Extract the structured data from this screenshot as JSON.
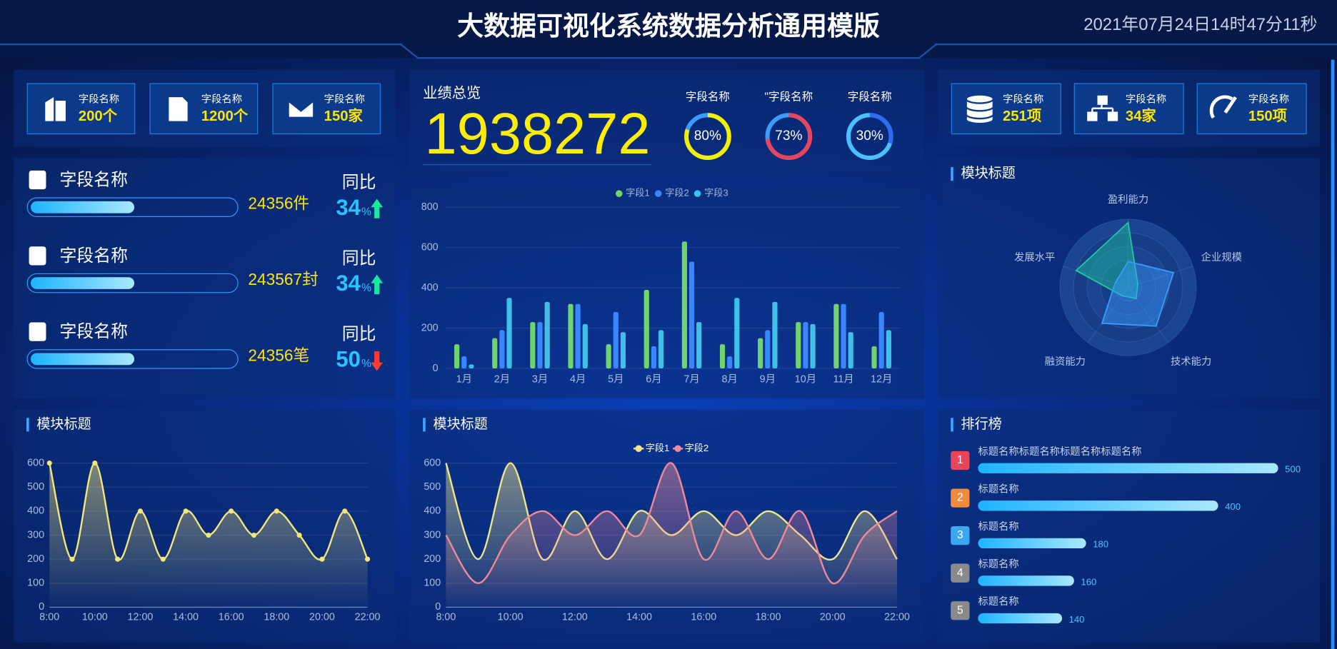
{
  "header": {
    "title": "大数据可视化系统数据分析通用模版",
    "datetime": "2021年07月24日14时47分11秒"
  },
  "stat_cards_left": [
    {
      "label": "字段名称",
      "value": "200个"
    },
    {
      "label": "字段名称",
      "value": "1200个"
    },
    {
      "label": "字段名称",
      "value": "150家"
    }
  ],
  "stat_cards_right": [
    {
      "label": "字段名称",
      "value": "251项"
    },
    {
      "label": "字段名称",
      "value": "34家"
    },
    {
      "label": "字段名称",
      "value": "150项"
    }
  ],
  "progress_items": [
    {
      "name": "字段名称",
      "amount": "24356件",
      "progress": 50,
      "yoy_label": "同比",
      "yoy": 34,
      "yoy_unit": "%",
      "trend": "up"
    },
    {
      "name": "字段名称",
      "amount": "243567封",
      "progress": 50,
      "yoy_label": "同比",
      "yoy": 34,
      "yoy_unit": "%",
      "trend": "up"
    },
    {
      "name": "字段名称",
      "amount": "24356笔",
      "progress": 50,
      "yoy_label": "同比",
      "yoy": 50,
      "yoy_unit": "%",
      "trend": "down"
    }
  ],
  "overview": {
    "title": "业绩总览",
    "total": 1938272
  },
  "chart_data": [
    {
      "type": "donut",
      "title": "字段名称",
      "values": [
        80
      ],
      "value_labels": [
        "80%"
      ],
      "color": "#f2f200",
      "rest_color": "#3a9cff"
    },
    {
      "type": "donut",
      "title": "\"字段名称",
      "values": [
        73
      ],
      "value_labels": [
        "73%"
      ],
      "color": "#e8455a",
      "rest_color": "#3a9cff"
    },
    {
      "type": "donut",
      "title": "字段名称",
      "values": [
        30
      ],
      "value_labels": [
        "30%"
      ],
      "color": "#2d6cf0",
      "rest_color": "#4cc0ff"
    },
    {
      "type": "bar",
      "categories": [
        "1月",
        "2月",
        "3月",
        "4月",
        "5月",
        "6月",
        "7月",
        "8月",
        "9月",
        "10月",
        "11月",
        "12月"
      ],
      "series": [
        {
          "name": "字段1",
          "color": "#6fd36e",
          "values": [
            120,
            150,
            230,
            320,
            120,
            390,
            630,
            120,
            150,
            230,
            320,
            110
          ]
        },
        {
          "name": "字段2",
          "color": "#3a86ff",
          "values": [
            60,
            190,
            230,
            320,
            280,
            110,
            530,
            60,
            190,
            230,
            320,
            280
          ]
        },
        {
          "name": "字段3",
          "color": "#3fc0e8",
          "values": [
            20,
            350,
            330,
            220,
            180,
            190,
            230,
            350,
            330,
            220,
            180,
            190
          ]
        }
      ],
      "ylim": [
        0,
        800
      ],
      "yticks": [
        0,
        200,
        400,
        600,
        800
      ],
      "grid": true,
      "legend": "top"
    },
    {
      "type": "radar",
      "title": "模块标题",
      "indicators": [
        "盈利能力",
        "企业规模",
        "技术能力",
        "融资能力",
        "发展水平"
      ],
      "max": 100,
      "series": [
        {
          "color": "#1fc9a0",
          "values": [
            95,
            15,
            20,
            15,
            80
          ]
        },
        {
          "color": "#3a9cff",
          "values": [
            38,
            70,
            70,
            65,
            20
          ]
        }
      ]
    },
    {
      "type": "line",
      "title": "模块标题",
      "categories": [
        "8:00",
        null,
        "10:00",
        null,
        "12:00",
        null,
        "14:00",
        null,
        "16:00",
        null,
        "18:00",
        null,
        "20:00",
        null,
        "22:00"
      ],
      "series": [
        {
          "color": "#f3e67a",
          "values": [
            600,
            200,
            600,
            200,
            400,
            200,
            400,
            300,
            400,
            300,
            400,
            300,
            200,
            400,
            200
          ]
        }
      ],
      "ylim": [
        0,
        600
      ],
      "yticks": [
        0,
        100,
        200,
        300,
        400,
        500,
        600
      ],
      "grid": true
    },
    {
      "type": "line",
      "title": "模块标题",
      "categories": [
        "8:00",
        null,
        "10:00",
        null,
        "12:00",
        null,
        "14:00",
        null,
        "16:00",
        null,
        "18:00",
        null,
        "20:00",
        null,
        "22:00"
      ],
      "series": [
        {
          "name": "字段1",
          "color": "#f0e68c",
          "values": [
            600,
            200,
            600,
            200,
            400,
            200,
            400,
            300,
            400,
            300,
            400,
            300,
            200,
            400,
            200
          ]
        },
        {
          "name": "字段2",
          "color": "#f08a9a",
          "values": [
            300,
            100,
            300,
            400,
            300,
            400,
            300,
            600,
            200,
            400,
            200,
            400,
            100,
            300,
            400
          ]
        }
      ],
      "ylim": [
        0,
        600
      ],
      "yticks": [
        0,
        100,
        200,
        300,
        400,
        500,
        600
      ],
      "grid": true,
      "legend": "top"
    }
  ],
  "ranking": {
    "title": "排行榜",
    "items": [
      {
        "rank": 1,
        "name": "标题名称标题名称标题名称标题名称",
        "value": 500,
        "badge_color": "#e8455a"
      },
      {
        "rank": 2,
        "name": "标题名称",
        "value": 400,
        "badge_color": "#f08a3c"
      },
      {
        "rank": 3,
        "name": "标题名称",
        "value": 180,
        "badge_color": "#3aa8f0"
      },
      {
        "rank": 4,
        "name": "标题名称",
        "value": 160,
        "badge_color": "#8a8a8a"
      },
      {
        "rank": 5,
        "name": "标题名称",
        "value": 140,
        "badge_color": "#8a8a8a"
      }
    ]
  }
}
